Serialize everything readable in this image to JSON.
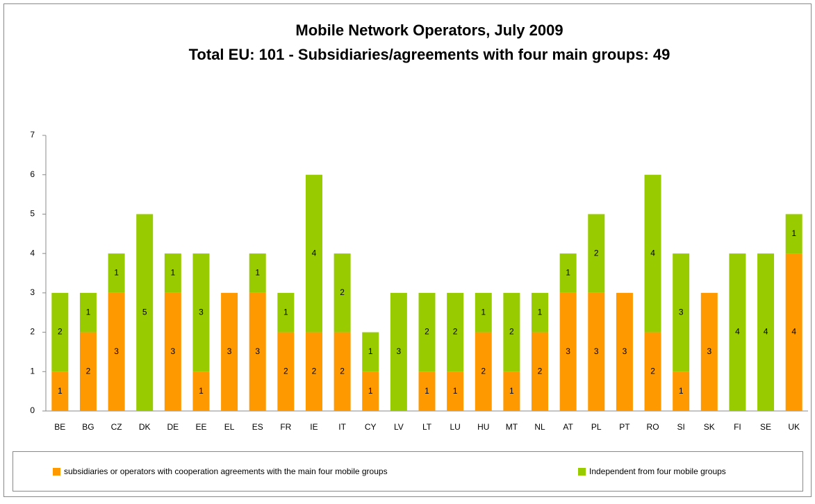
{
  "chart_data": {
    "type": "stacked_bar",
    "title": "Mobile Network Operators, July 2009",
    "subtitle": "Total EU: 101 - Subsidiaries/agreements with four main groups: 49",
    "categories": [
      "BE",
      "BG",
      "CZ",
      "DK",
      "DE",
      "EE",
      "EL",
      "ES",
      "FR",
      "IE",
      "IT",
      "CY",
      "LV",
      "LT",
      "LU",
      "HU",
      "MT",
      "NL",
      "AT",
      "PL",
      "PT",
      "RO",
      "SI",
      "SK",
      "FI",
      "SE",
      "UK"
    ],
    "series": [
      {
        "name": "subsidiaries or operators with cooperation agreements with the main four mobile groups",
        "color": "#ff9900",
        "values": [
          1,
          2,
          3,
          0,
          3,
          1,
          3,
          3,
          2,
          2,
          2,
          1,
          0,
          1,
          1,
          2,
          1,
          2,
          3,
          3,
          3,
          2,
          1,
          3,
          0,
          0,
          4
        ]
      },
      {
        "name": "Independent from four mobile groups",
        "color": "#99cc00",
        "values": [
          2,
          1,
          1,
          5,
          1,
          3,
          0,
          1,
          1,
          4,
          2,
          1,
          3,
          2,
          2,
          1,
          2,
          1,
          1,
          2,
          0,
          4,
          3,
          0,
          4,
          4,
          1
        ]
      }
    ],
    "ylim": [
      0,
      7
    ],
    "yticks": [
      0,
      1,
      2,
      3,
      4,
      5,
      6,
      7
    ],
    "grid": false,
    "legend": "bottom"
  }
}
